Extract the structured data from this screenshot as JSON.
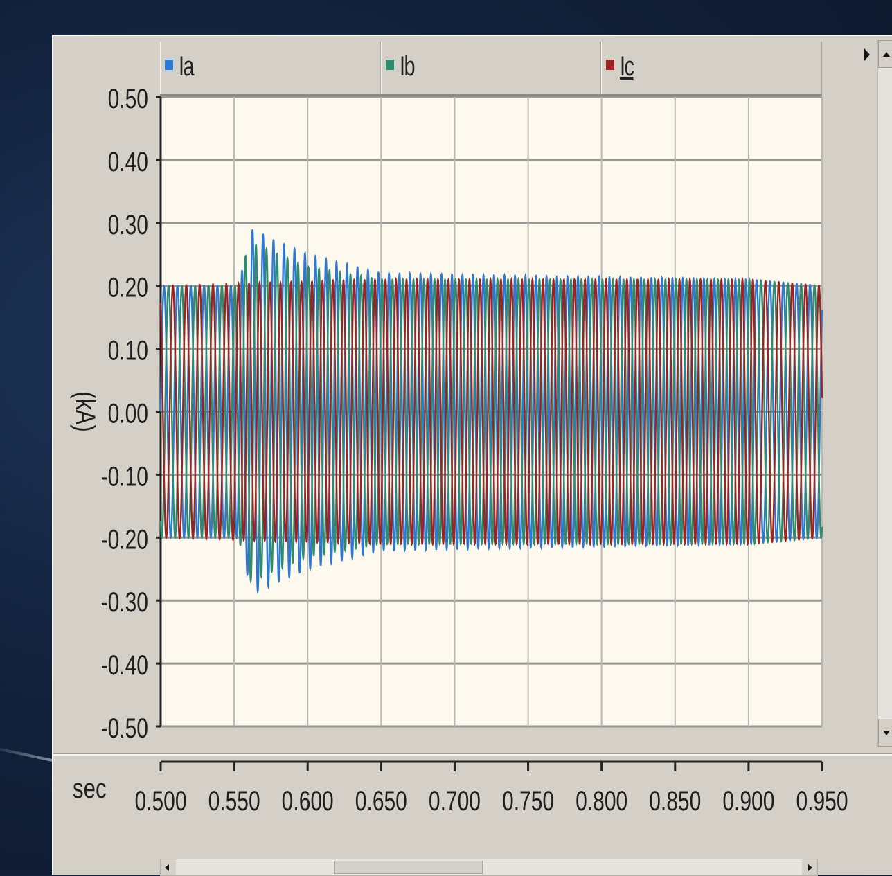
{
  "colors": {
    "Ia": "#2f78d0",
    "Ib": "#2e8b70",
    "Ic": "#9a2424",
    "plot_bg": "#fdf9ef",
    "grid": "#9a9892"
  },
  "legend": [
    {
      "label": "Ia",
      "color": "#2f78d0"
    },
    {
      "label": "Ib",
      "color": "#2e8b70"
    },
    {
      "label": "Ic",
      "color": "#9a2424"
    }
  ],
  "chart_data": {
    "type": "line",
    "xlabel": "sec",
    "ylabel": "(kA)",
    "xlim": [
      0.5,
      0.95
    ],
    "ylim": [
      -0.5,
      0.5
    ],
    "x_ticks": [
      "0.500",
      "0.550",
      "0.600",
      "0.650",
      "0.700",
      "0.750",
      "0.800",
      "0.850",
      "0.900",
      "0.950"
    ],
    "y_ticks": [
      "0.50",
      "0.40",
      "0.30",
      "0.20",
      "0.10",
      "0.00",
      "-0.10",
      "-0.20",
      "-0.30",
      "-0.40",
      "-0.50"
    ],
    "grid": true,
    "legend_position": "top",
    "series": [
      {
        "name": "Ia",
        "color": "#2f78d0",
        "description_points": [
          {
            "x": 0.5,
            "y": 0.2
          },
          {
            "x": 0.553,
            "y": 0.2
          },
          {
            "x": 0.562,
            "y": 0.29
          },
          {
            "x": 0.58,
            "y": 0.27
          },
          {
            "x": 0.6,
            "y": 0.25
          },
          {
            "x": 0.65,
            "y": 0.22
          },
          {
            "x": 0.9,
            "y": 0.21
          },
          {
            "x": 0.95,
            "y": 0.2
          }
        ]
      },
      {
        "name": "Ib",
        "color": "#2e8b70",
        "description_points": [
          {
            "x": 0.5,
            "y": -0.2
          },
          {
            "x": 0.553,
            "y": -0.2
          },
          {
            "x": 0.56,
            "y": -0.27
          },
          {
            "x": 0.58,
            "y": -0.25
          },
          {
            "x": 0.6,
            "y": -0.23
          },
          {
            "x": 0.65,
            "y": -0.21
          },
          {
            "x": 0.9,
            "y": -0.21
          },
          {
            "x": 0.95,
            "y": -0.2
          }
        ]
      },
      {
        "name": "Ic",
        "color": "#9a2424",
        "description_points": [
          {
            "x": 0.5,
            "y": 0.2
          },
          {
            "x": 0.65,
            "y": 0.21
          },
          {
            "x": 0.9,
            "y": 0.21
          },
          {
            "x": 0.95,
            "y": 0.2
          }
        ]
      }
    ],
    "signal": {
      "frequency_hz_pre_fault": 110,
      "frequency_hz_fault": 140,
      "fault_start": 0.55,
      "fault_end": 0.905,
      "steady_amplitude": 0.2,
      "fault_amplitude": 0.21,
      "transient_peak": 0.29
    }
  }
}
